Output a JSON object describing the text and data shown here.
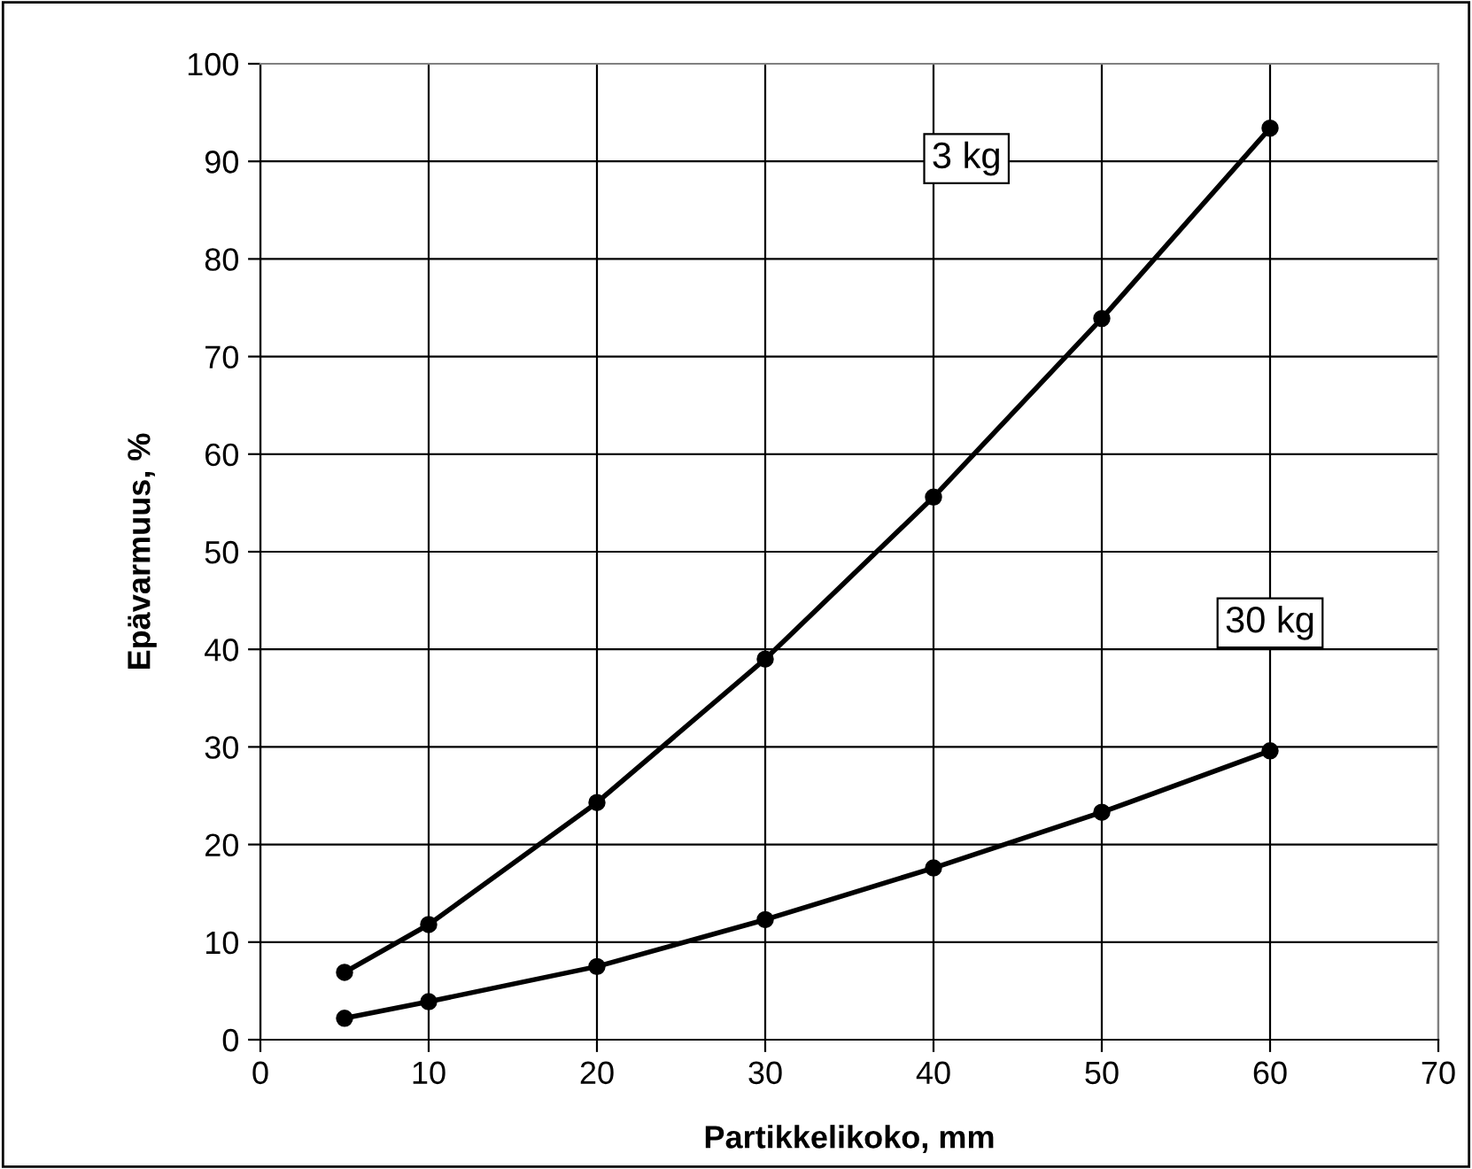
{
  "chart_data": {
    "type": "line",
    "xlabel": "Partikkelikoko, mm",
    "ylabel": "Epävarmuus, %",
    "x": [
      5,
      10,
      20,
      30,
      40,
      50,
      60
    ],
    "series": [
      {
        "name": "3 kg",
        "color": "#000000",
        "values": [
          6.9,
          11.8,
          24.3,
          39.0,
          55.6,
          73.9,
          93.4
        ]
      },
      {
        "name": "30 kg",
        "color": "#000000",
        "values": [
          2.2,
          3.9,
          7.5,
          12.3,
          17.6,
          23.3,
          29.6
        ]
      }
    ],
    "xlim": [
      0,
      70
    ],
    "xticks": [
      0,
      10,
      20,
      30,
      40,
      50,
      60,
      70
    ],
    "ylim": [
      0,
      100
    ],
    "yticks": [
      0,
      10,
      20,
      30,
      40,
      50,
      60,
      70,
      80,
      90,
      100
    ],
    "grid": true,
    "legend": false,
    "marker": "circle",
    "line_style": "solid"
  }
}
